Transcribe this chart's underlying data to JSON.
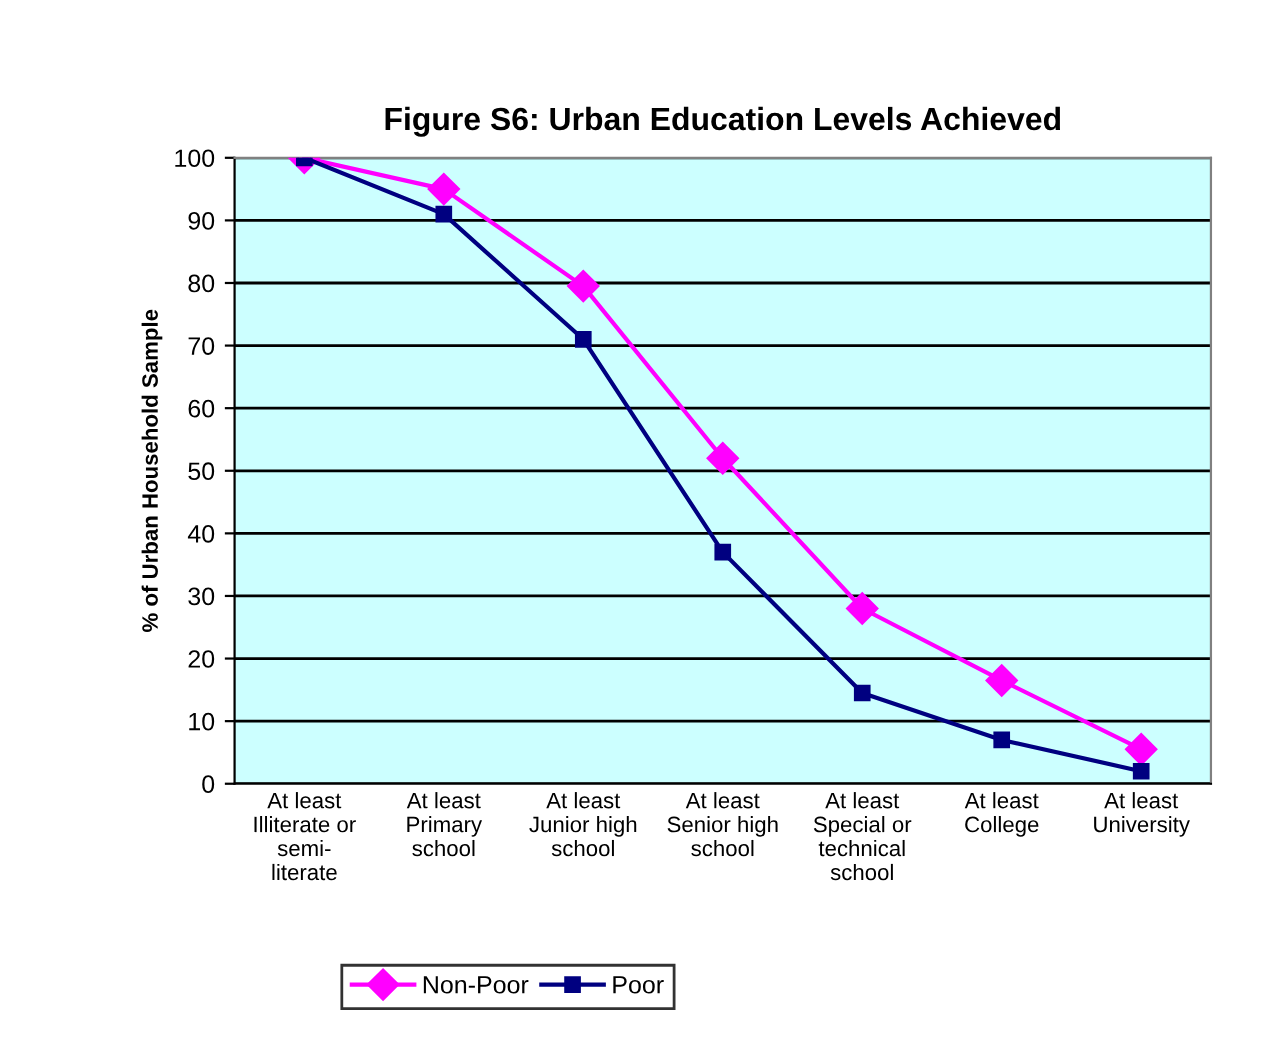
{
  "chart_data": {
    "type": "line",
    "title": "Figure S6: Urban Education Levels Achieved",
    "ylabel": "% of Urban Household Sample",
    "categories": [
      "At least\nIlliterate or\nsemi-\nliterate",
      "At least\nPrimary\nschool",
      "At least\nJunior high\nschool",
      "At least\nSenior high\nschool",
      "At least\nSpecial or\ntechnical\nschool",
      "At least\nCollege",
      "At least\nUniversity"
    ],
    "series": [
      {
        "name": "Non-Poor",
        "color": "#ff00ff",
        "marker": "diamond",
        "values": [
          100,
          95,
          79.5,
          52,
          28,
          16.5,
          5.5
        ]
      },
      {
        "name": "Poor",
        "color": "#000080",
        "marker": "square",
        "values": [
          100,
          91,
          71,
          37,
          14.5,
          7,
          2
        ]
      }
    ],
    "ylim": [
      0,
      100
    ],
    "yticks": [
      0,
      10,
      20,
      30,
      40,
      50,
      60,
      70,
      80,
      90,
      100
    ],
    "grid": "y",
    "legend": "bottom",
    "line_style": "solid"
  }
}
